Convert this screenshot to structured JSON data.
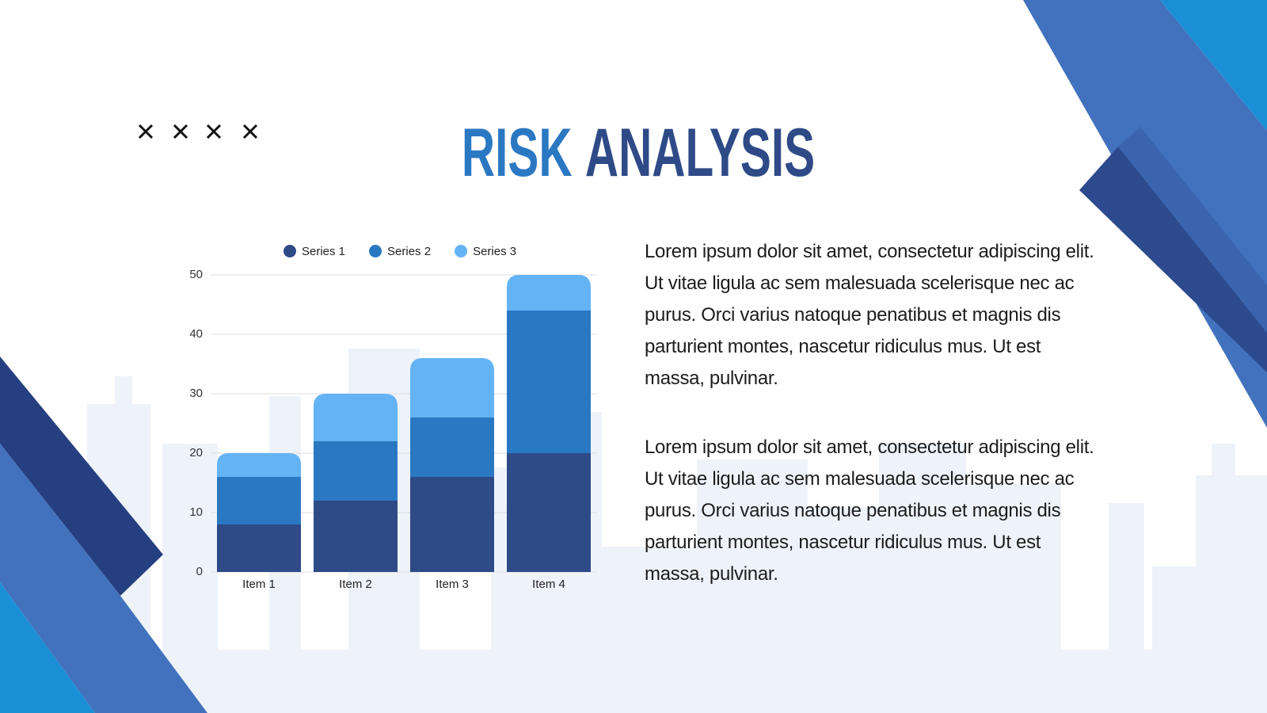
{
  "slide": {
    "title_accent": "RISK",
    "title_rest": "ANALYSIS",
    "paragraphs": [
      "Lorem ipsum dolor sit amet, consectetur adipiscing elit. Ut vitae ligula ac sem malesuada scelerisque nec ac purus. Orci varius natoque penatibus et magnis dis parturient montes, nascetur ridiculus mus. Ut est massa, pulvinar.",
      "Lorem ipsum dolor sit amet, consectetur adipiscing elit. Ut vitae ligula ac sem malesuada scelerisque nec ac purus. Orci varius natoque penatibus et magnis dis parturient montes, nascetur ridiculus mus. Ut est massa, pulvinar."
    ]
  },
  "chart_data": {
    "type": "stacked_bar",
    "categories": [
      "Item 1",
      "Item 2",
      "Item 3",
      "Item 4"
    ],
    "series": [
      {
        "name": "Series 1",
        "color": "#2e4a87",
        "values": [
          8,
          12,
          16,
          20
        ]
      },
      {
        "name": "Series 2",
        "color": "#2b78c2",
        "values": [
          8,
          10,
          10,
          24
        ]
      },
      {
        "name": "Series 3",
        "color": "#63b3f5",
        "values": [
          4,
          8,
          10,
          6
        ]
      }
    ],
    "ylim": [
      0,
      50
    ],
    "yticks": [
      0,
      10,
      20,
      30,
      40,
      50
    ],
    "grid": true,
    "legend": "top"
  }
}
